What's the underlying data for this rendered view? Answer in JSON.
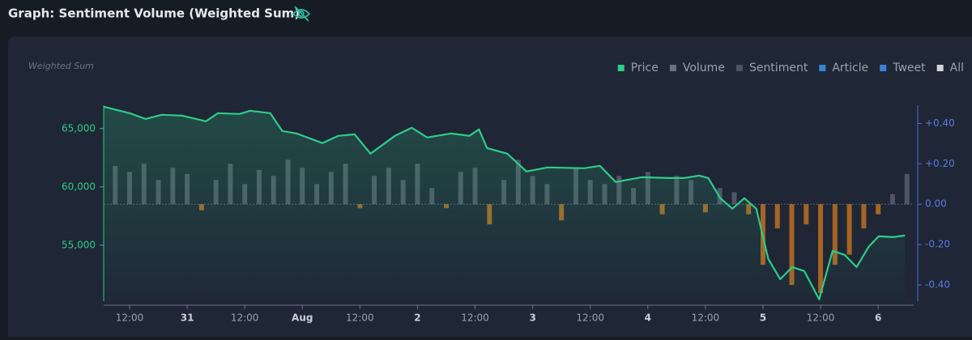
{
  "chart_data": {
    "type": "line",
    "title": "Graph: Sentiment Volume (Weighted Sum)",
    "ylabel": "Weighted Sum",
    "legend": [
      {
        "name": "Price",
        "color": "#2ecc8a"
      },
      {
        "name": "Volume",
        "color": "#6b7280"
      },
      {
        "name": "Sentiment",
        "color": "#4b5263"
      },
      {
        "name": "Article",
        "color": "#3b82d6"
      },
      {
        "name": "Tweet",
        "color": "#3b82d6"
      },
      {
        "name": "All",
        "color": "#d1d5db"
      }
    ],
    "xlim": [
      6.6,
      175.4
    ],
    "xticks": [
      {
        "value": 12,
        "label": "12:00"
      },
      {
        "value": 24,
        "label": "31"
      },
      {
        "value": 36,
        "label": "12:00"
      },
      {
        "value": 48,
        "label": "Aug"
      },
      {
        "value": 60,
        "label": "12:00"
      },
      {
        "value": 72,
        "label": "2"
      },
      {
        "value": 84,
        "label": "12:00"
      },
      {
        "value": 96,
        "label": "3"
      },
      {
        "value": 108,
        "label": "12:00"
      },
      {
        "value": 120,
        "label": "4"
      },
      {
        "value": 132,
        "label": "12:00"
      },
      {
        "value": 144,
        "label": "5"
      },
      {
        "value": 156,
        "label": "12:00"
      },
      {
        "value": 168,
        "label": "6"
      }
    ],
    "ylim": [
      50200,
      67000
    ],
    "yticks": [
      {
        "value": 55000,
        "label": "55,000"
      },
      {
        "value": 60000,
        "label": "60,000"
      },
      {
        "value": 65000,
        "label": "65,000"
      }
    ],
    "y2lim": [
      -0.48,
      0.49
    ],
    "y2ticks": [
      {
        "value": -0.4,
        "label": "-0.40"
      },
      {
        "value": -0.2,
        "label": "-0.20"
      },
      {
        "value": 0,
        "label": "0.00"
      },
      {
        "value": 0.2,
        "label": "+0.20"
      },
      {
        "value": 0.4,
        "label": "+0.40"
      }
    ],
    "series": [
      {
        "color": "#2ecc8a",
        "x": [
          6.6,
          12,
          15.3,
          18.7,
          22.9,
          27.9,
          30.4,
          34.9,
          37.1,
          41.3,
          43.8,
          46.8,
          52.2,
          55.5,
          58.9,
          62.2,
          67.3,
          70.8,
          74,
          79,
          82.8,
          84.8,
          86.5,
          90.7,
          94.7,
          99.1,
          106.8,
          110,
          113.3,
          118.7,
          124.2,
          127.5,
          130.7,
          132.6,
          135.1,
          137.6,
          140.1,
          142.6,
          145.1,
          147.6,
          150.1,
          152.6,
          155.7,
          158.5,
          161,
          163.5,
          166,
          168.1,
          171.1,
          173.6
        ],
        "values": [
          66875,
          66320,
          65830,
          66180,
          66110,
          65625,
          66320,
          66250,
          66530,
          66320,
          64790,
          64580,
          63750,
          64375,
          64510,
          62850,
          64375,
          65070,
          64240,
          64580,
          64375,
          64930,
          63330,
          62850,
          61320,
          61670,
          61600,
          61810,
          60420,
          60830,
          60760,
          60760,
          60970,
          60760,
          59030,
          58125,
          59030,
          58125,
          53820,
          52080,
          53125,
          52780,
          50350,
          54510,
          54170,
          53125,
          54860,
          55760,
          55690,
          55830
        ]
      },
      {
        "axis": "y2",
        "color": "#5a6172",
        "negative_color": "#c7741f",
        "x": [
          9,
          12,
          15,
          18,
          21,
          24,
          27,
          30,
          33,
          36,
          39,
          42,
          45,
          48,
          51,
          54,
          57,
          60,
          63,
          66,
          69,
          72,
          75,
          78,
          81,
          84,
          87,
          90,
          93,
          96,
          99,
          102,
          105,
          108,
          111,
          114,
          117,
          120,
          123,
          126,
          129,
          132,
          135,
          138,
          141,
          144,
          147,
          150,
          153,
          156,
          159,
          162,
          165,
          168,
          171,
          174
        ],
        "values": [
          0.19,
          0.16,
          0.2,
          0.12,
          0.18,
          0.15,
          -0.03,
          0.12,
          0.2,
          0.1,
          0.17,
          0.14,
          0.22,
          0.18,
          0.1,
          0.16,
          0.2,
          -0.02,
          0.14,
          0.18,
          0.12,
          0.2,
          0.08,
          -0.02,
          0.16,
          0.18,
          -0.1,
          0.12,
          0.22,
          0.14,
          0.1,
          -0.08,
          0.18,
          0.12,
          0.1,
          0.14,
          0.08,
          0.16,
          -0.05,
          0.14,
          0.12,
          -0.04,
          0.08,
          0.06,
          -0.05,
          -0.3,
          -0.12,
          -0.4,
          -0.1,
          -0.44,
          -0.3,
          -0.25,
          -0.12,
          -0.05,
          0.05,
          0.15
        ]
      }
    ]
  }
}
